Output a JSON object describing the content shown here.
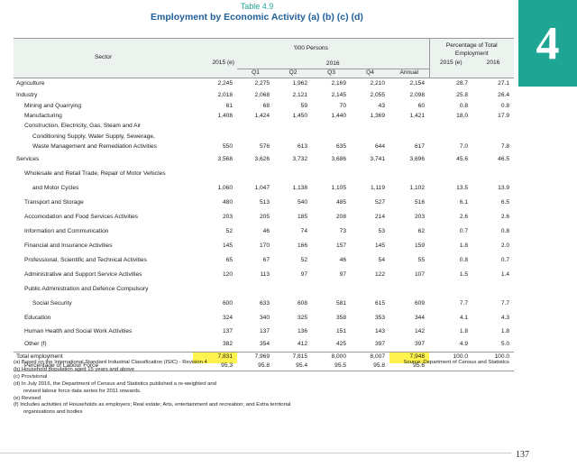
{
  "chapter": "4",
  "table": {
    "number": "Table 4.9",
    "title": "Employment by Economic Activity (a) (b) (c) (d)"
  },
  "header": {
    "sector": "Sector",
    "persons": "'000 Persons",
    "pct": "Percentage of Total Employment",
    "year_2015": "2015 (e)",
    "year_2016": "2016",
    "q1": "Q1",
    "q2": "Q2",
    "q3": "Q3",
    "q4": "Q4",
    "annual": "Annual",
    "pct_2015": "2015 (e)",
    "pct_2016": "2016"
  },
  "rows": {
    "agri": {
      "label": "Agriculture",
      "v": [
        "2,245",
        "2,275",
        "1,962",
        "2,169",
        "2,210",
        "2,154",
        "28.7",
        "27.1"
      ]
    },
    "industry": {
      "label": "Industry",
      "v": [
        "2,018",
        "2,068",
        "2,121",
        "2,145",
        "2,055",
        "2,098",
        "25.8",
        "26.4"
      ]
    },
    "mining": {
      "label": "Mining and Quarrying",
      "v": [
        "61",
        "68",
        "59",
        "70",
        "43",
        "60",
        "0.8",
        "0.8"
      ]
    },
    "manuf": {
      "label": "Manufacturing",
      "v": [
        "1,408",
        "1,424",
        "1,450",
        "1,440",
        "1,369",
        "1,421",
        "18.0",
        "17.9"
      ]
    },
    "constr": {
      "l1": "Construction, Electricity, Gas, Steam and Air",
      "l2": "Conditioning  Supply, Water Supply, Sewerage,",
      "l3": "Waste Management and Remediation Activities",
      "v": [
        "550",
        "576",
        "613",
        "635",
        "644",
        "617",
        "7.0",
        "7.8"
      ]
    },
    "services": {
      "label": "Services",
      "v": [
        "3,568",
        "3,626",
        "3,732",
        "3,686",
        "3,741",
        "3,696",
        "45.6",
        "46.5"
      ]
    },
    "wholesale": {
      "l1": "Wholesale and Retail Trade, Repair of Motor Vehicles",
      "l2": "and Motor Cycles",
      "v": [
        "1,060",
        "1,047",
        "1,138",
        "1,105",
        "1,119",
        "1,102",
        "13.5",
        "13.9"
      ]
    },
    "transport": {
      "label": "Transport and Storage",
      "v": [
        "480",
        "513",
        "540",
        "485",
        "527",
        "516",
        "6.1",
        "6.5"
      ]
    },
    "accom": {
      "label": "Accomodation and Food Services Activities",
      "v": [
        "203",
        "205",
        "185",
        "208",
        "214",
        "203",
        "2.6",
        "2.6"
      ]
    },
    "info": {
      "label": "Information and Communication",
      "v": [
        "52",
        "46",
        "74",
        "73",
        "53",
        "62",
        "0.7",
        "0.8"
      ]
    },
    "finance": {
      "label": "Financial and Insurance Activities",
      "v": [
        "145",
        "170",
        "166",
        "157",
        "145",
        "159",
        "1.8",
        "2.0"
      ]
    },
    "prof": {
      "label": "Professional, Scientific and Technical Activities",
      "v": [
        "65",
        "67",
        "52",
        "46",
        "54",
        "55",
        "0.8",
        "0.7"
      ]
    },
    "admin": {
      "label": "Administrative and Support Service Activities",
      "v": [
        "120",
        "113",
        "97",
        "97",
        "122",
        "107",
        "1.5",
        "1.4"
      ]
    },
    "public": {
      "l1": "Public Administration and Defence Compulsory",
      "l2": "Social Security",
      "v": [
        "600",
        "633",
        "608",
        "581",
        "615",
        "609",
        "7.7",
        "7.7"
      ]
    },
    "edu": {
      "label": "Education",
      "v": [
        "324",
        "340",
        "325",
        "358",
        "353",
        "344",
        "4.1",
        "4.3"
      ]
    },
    "health": {
      "label": "Human Health and Social Work Activities",
      "v": [
        "137",
        "137",
        "136",
        "151",
        "143",
        "142",
        "1.8",
        "1.8"
      ]
    },
    "other": {
      "label": "Other (f)",
      "v": [
        "382",
        "354",
        "412",
        "425",
        "397",
        "397",
        "4.9",
        "5.0"
      ]
    },
    "total": {
      "label": "Total employment",
      "v": [
        "7,831",
        "7,969",
        "7,815",
        "8,000",
        "8,007",
        "7,948",
        "100.0",
        "100.0"
      ]
    },
    "lf": {
      "label": "Percentage of Labour Force",
      "v": [
        "95.3",
        "95.8",
        "95.4",
        "95.5",
        "95.8",
        "95.6"
      ]
    }
  },
  "notes": {
    "a": "(a) Based on the International Standard Industrial Classification (ISIC) - Revision 4",
    "source": "Source: Department of Census and Statistics",
    "b": "(b) Household population aged 15 years and above",
    "c": "(c) Provisional",
    "d1": "(d) In July 2016, the Department of Census and Statistics published a re-weighted and",
    "d2": "revised labour force data series for 2011 onwards.",
    "e": "(e) Revised",
    "f1": "(f)  Includes activities of Households as employers; Real estate; Arts, entertainment and recreation; and Extra territorial",
    "f2": "organisations and bodies"
  },
  "page_number": "137",
  "colors": {
    "tab": "#1fa594",
    "title": "#1f5f9a",
    "highlight": "#fff44f",
    "header_shade": "#ecf3ef"
  }
}
